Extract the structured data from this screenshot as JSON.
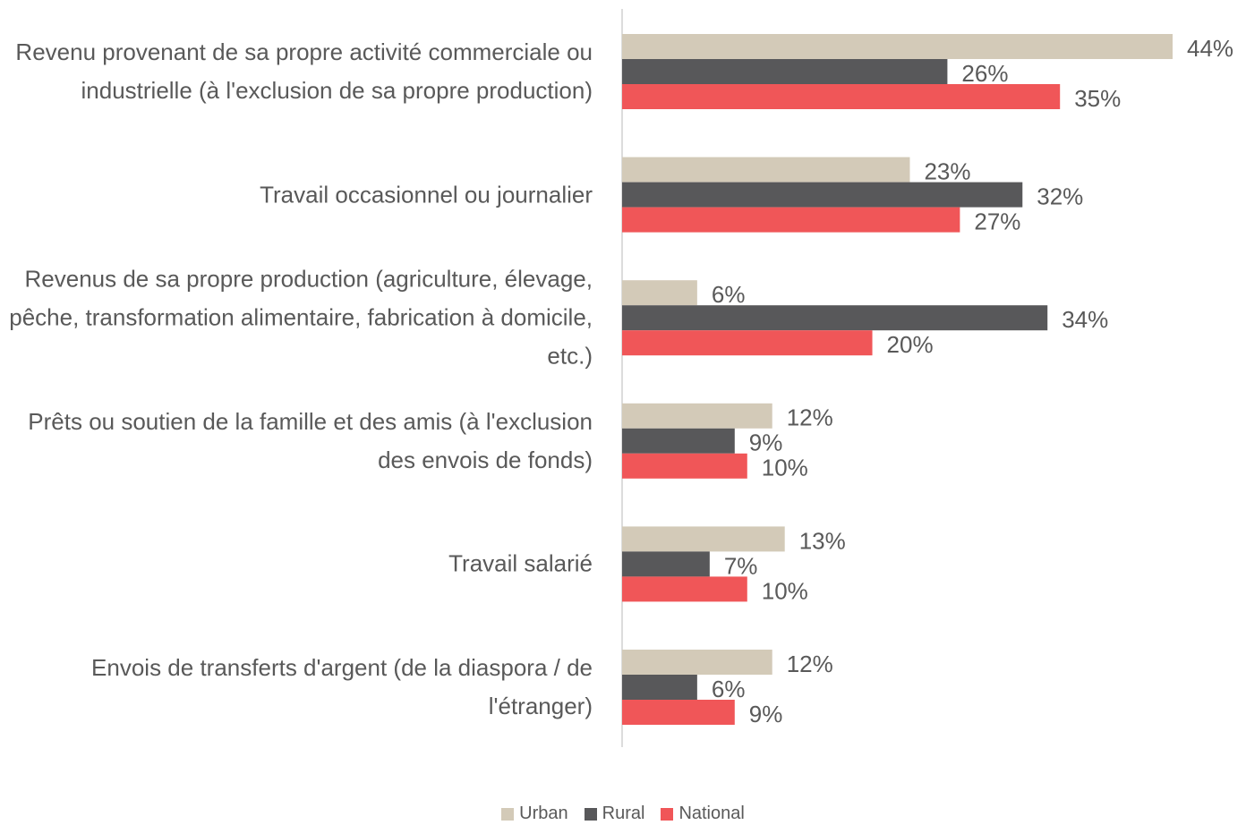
{
  "chart_data": {
    "type": "bar",
    "orientation": "horizontal",
    "categories": [
      "Revenu provenant de sa propre activité commerciale ou industrielle (à l'exclusion de sa propre production)",
      "Travail occasionnel ou journalier",
      "Revenus de sa propre production (agriculture, élevage, pêche, transformation alimentaire, fabrication à domicile, etc.)",
      "Prêts ou soutien de la famille et des amis (à l'exclusion des envois de fonds)",
      "Travail salarié",
      "Envois de transferts d'argent (de la diaspora / de l'étranger)"
    ],
    "series": [
      {
        "name": "Urban",
        "color": "#d3cab8",
        "values": [
          44,
          23,
          6,
          12,
          13,
          12
        ],
        "value_labels": [
          "44%",
          "23%",
          "6%",
          "12%",
          "13%",
          "12%"
        ]
      },
      {
        "name": "Rural",
        "color": "#58585a",
        "values": [
          26,
          32,
          34,
          9,
          7,
          6
        ],
        "value_labels": [
          "26%",
          "32%",
          "34%",
          "9%",
          "7%",
          "6%"
        ]
      },
      {
        "name": "National",
        "color": "#f05658",
        "values": [
          35,
          27,
          20,
          10,
          10,
          9
        ],
        "value_labels": [
          "35%",
          "27%",
          "20%",
          "10%",
          "10%",
          "9%"
        ]
      }
    ],
    "legend": "bottom"
  }
}
